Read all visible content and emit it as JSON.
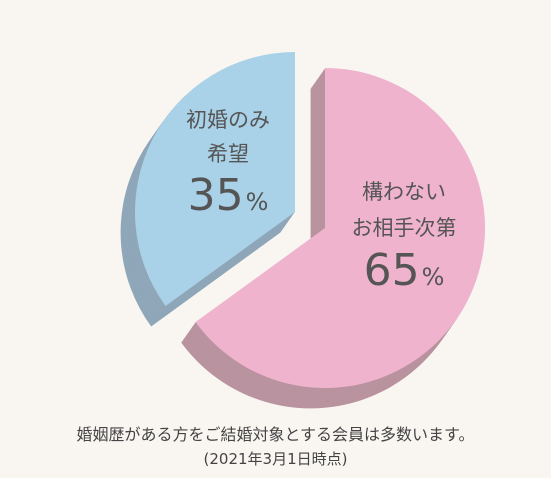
{
  "chart_data": {
    "type": "pie",
    "style": "3d-exploded",
    "slices": [
      {
        "label_lines": [
          "初婚のみ",
          "希望"
        ],
        "value": 35,
        "unit": "%",
        "color": "#a9d1e7",
        "side_color": "#8fa7b9"
      },
      {
        "label_lines": [
          "構わない",
          "お相手次第"
        ],
        "value": 65,
        "unit": "%",
        "color": "#efb3cd",
        "side_color": "#b9939f"
      }
    ]
  },
  "caption": {
    "line1": "婚姻歴がある方をご結婚対象とする会員は多数います。",
    "line2": "(2021年3月1日時点)"
  }
}
